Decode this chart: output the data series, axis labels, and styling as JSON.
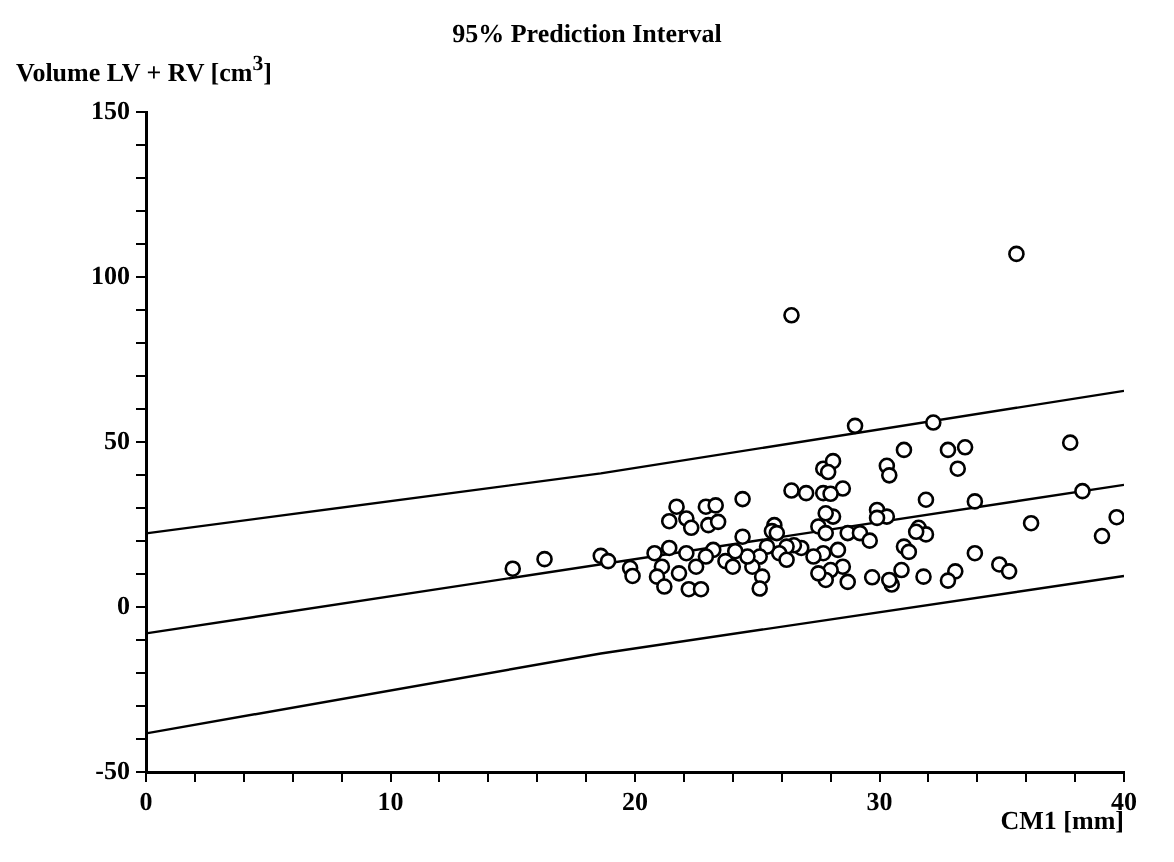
{
  "chart_data": {
    "type": "scatter",
    "title": "95% Prediction Interval",
    "xlabel": "CM1 [mm]",
    "ylabel": "Volume LV + RV [cm$^{3}$]",
    "xlim": [
      0,
      40
    ],
    "ylim": [
      -50,
      150
    ],
    "xticks": [
      0,
      {
        "value": 2,
        "label": null
      },
      {
        "value": 4,
        "label": null
      },
      {
        "value": 6,
        "label": null
      },
      {
        "value": 8,
        "label": null
      },
      10,
      {
        "value": 12,
        "label": null
      },
      {
        "value": 14,
        "label": null
      },
      {
        "value": 16,
        "label": null
      },
      {
        "value": 18,
        "label": null
      },
      20,
      {
        "value": 22,
        "label": null
      },
      {
        "value": 24,
        "label": null
      },
      {
        "value": 26,
        "label": null
      },
      {
        "value": 28,
        "label": null
      },
      30,
      {
        "value": 32,
        "label": null
      },
      {
        "value": 34,
        "label": null
      },
      {
        "value": 36,
        "label": null
      },
      {
        "value": 38,
        "label": null
      },
      40
    ],
    "yticks": [
      -50,
      {
        "value": -40,
        "label": null
      },
      {
        "value": -30,
        "label": null
      },
      {
        "value": -20,
        "label": null
      },
      {
        "value": -10,
        "label": null
      },
      0,
      {
        "value": 10,
        "label": null
      },
      {
        "value": 20,
        "label": null
      },
      {
        "value": 30,
        "label": null
      },
      {
        "value": 40,
        "label": null
      },
      50,
      {
        "value": 60,
        "label": null
      },
      {
        "value": 70,
        "label": null
      },
      {
        "value": 80,
        "label": null
      },
      {
        "value": 90,
        "label": null
      },
      100,
      {
        "value": 110,
        "label": null
      },
      {
        "value": 120,
        "label": null
      },
      {
        "value": 130,
        "label": null
      },
      {
        "value": 140,
        "label": null
      },
      150
    ],
    "grid": false,
    "legend": false,
    "series": [
      {
        "color": "#000000",
        "marker": "circle",
        "x": [
          15.0,
          16.3,
          18.6,
          18.9,
          19.8,
          19.9,
          35.6,
          26.4,
          29.0,
          32.2,
          37.8,
          31.0,
          32.8,
          33.5,
          30.3,
          30.4,
          33.2,
          27.7,
          28.1,
          27.9,
          26.4,
          27.0,
          27.7,
          28.5,
          28.0,
          24.4,
          21.7,
          22.9,
          23.3,
          21.4,
          22.1,
          22.3,
          23.0,
          23.4,
          28.1,
          27.8,
          29.9,
          30.3,
          29.9,
          31.9,
          33.9,
          38.3,
          36.2,
          39.7,
          39.1,
          31.6,
          31.9,
          31.5,
          25.7,
          25.6,
          25.8,
          24.4,
          27.5,
          27.8,
          28.7,
          29.2,
          29.6,
          31.0,
          31.2,
          33.9,
          34.9,
          35.3,
          33.1,
          32.8,
          31.8,
          30.9,
          30.5,
          30.4,
          29.7,
          28.7,
          28.5,
          28.3,
          28.0,
          27.8,
          27.5,
          27.7,
          27.3,
          26.8,
          26.5,
          26.2,
          25.9,
          25.4,
          25.1,
          25.2,
          25.1,
          24.8,
          24.6,
          24.1,
          23.7,
          23.2,
          22.9,
          22.5,
          22.1,
          21.8,
          21.4,
          21.1,
          20.9,
          21.2,
          20.8,
          22.2,
          22.7,
          24.0,
          26.2
        ],
        "values": [
          11.6,
          14.5,
          15.5,
          13.9,
          11.8,
          9.4,
          107,
          88.4,
          54.9,
          55.9,
          49.8,
          47.6,
          47.6,
          48.4,
          42.8,
          39.9,
          41.9,
          41.9,
          44.2,
          40.9,
          35.3,
          34.5,
          34.5,
          35.9,
          34.3,
          32.7,
          30.4,
          30.4,
          30.8,
          26.0,
          26.8,
          24.0,
          24.8,
          25.8,
          27.4,
          28.4,
          29.4,
          27.4,
          27.0,
          32.5,
          32.0,
          35.1,
          25.4,
          27.2,
          21.5,
          24.0,
          22.0,
          22.8,
          24.8,
          23.0,
          22.4,
          21.3,
          24.4,
          22.4,
          22.4,
          22.4,
          20.1,
          18.3,
          16.7,
          16.3,
          12.9,
          10.8,
          10.8,
          8.0,
          9.2,
          11.2,
          6.8,
          8.2,
          9.0,
          7.6,
          12.2,
          17.3,
          11.2,
          8.2,
          10.2,
          16.3,
          15.3,
          17.9,
          18.7,
          18.3,
          16.3,
          18.3,
          15.3,
          9.2,
          5.6,
          12.2,
          15.3,
          16.9,
          13.9,
          17.3,
          15.3,
          12.2,
          16.3,
          10.2,
          17.9,
          12.2,
          9.2,
          6.2,
          16.3,
          5.4,
          5.4,
          12.2,
          14.3
        ]
      },
      {
        "type": "line",
        "marker": "none",
        "color": "#000000",
        "x": [
          0,
          40
        ],
        "values": [
          -8,
          37
        ]
      },
      {
        "type": "line",
        "marker": "none",
        "color": "#000000",
        "x": [
          0,
          18.6,
          40
        ],
        "values": [
          22.3,
          40.5,
          65.5
        ]
      },
      {
        "type": "line",
        "marker": "none",
        "color": "#000000",
        "x": [
          0,
          18.6,
          40
        ],
        "values": [
          -38.3,
          -14.1,
          9.4
        ]
      }
    ]
  }
}
